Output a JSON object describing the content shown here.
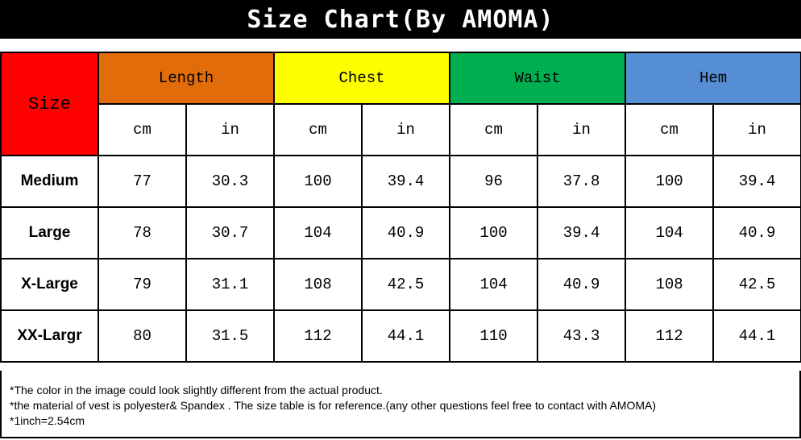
{
  "header": {
    "title": "Size Chart(By AMOMA)"
  },
  "table": {
    "size_label": "Size",
    "groups": [
      "Length",
      "Chest",
      "Waist",
      "Hem"
    ],
    "units": [
      "cm",
      "in",
      "cm",
      "in",
      "cm",
      "in",
      "cm",
      "in"
    ],
    "rows": [
      {
        "size": "Medium",
        "values": [
          77,
          30.3,
          100,
          39.4,
          96,
          37.8,
          100,
          39.4
        ]
      },
      {
        "size": "Large",
        "values": [
          78,
          30.7,
          104,
          40.9,
          100,
          39.4,
          104,
          40.9
        ]
      },
      {
        "size": "X-Large",
        "values": [
          79,
          31.1,
          108,
          42.5,
          104,
          40.9,
          108,
          42.5
        ]
      },
      {
        "size": "XX-Largr",
        "values": [
          80,
          31.5,
          112,
          44.1,
          110,
          43.3,
          112,
          44.1
        ]
      }
    ]
  },
  "notes": [
    "*The color in the image could look slightly different from the actual product.",
    "*the material of vest is polyester& Spandex . The size table is for reference.(any other questions feel free to contact with AMOMA)",
    "*1inch=2.54cm"
  ]
}
